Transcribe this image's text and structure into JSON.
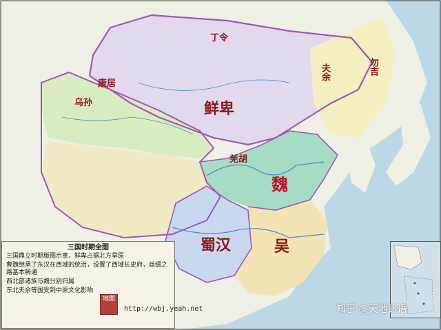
{
  "map": {
    "labels": {
      "dingling": "丁令",
      "xianbei": "鲜卑",
      "fuyu": "夫余",
      "wuji": "勿吉",
      "wusun": "乌孙",
      "kangju": "康居",
      "qiang": "羌胡",
      "wei": "魏",
      "shuhan": "蜀汉",
      "wu": "吴"
    },
    "colors": {
      "ocean": "#bcd8e6",
      "xianbei": "#e2d9ef",
      "northeast": "#f4eec0",
      "westernRegions": "#d9ecc0",
      "tibet": "#efe9c4",
      "wei": "#a6dcc3",
      "shu": "#c8d8ee",
      "wu": "#f3e3b4",
      "border": "#a255b8",
      "label": "#8b1a1a"
    }
  },
  "legend": {
    "title": "三国时期全图",
    "lines": [
      "三国鼎立时期版图示意，鲜卑占据北方草原",
      "曹魏继承了东汉在西域的统治，设置了西域长史府，丝绸之路基本畅通",
      "西北部诸族与魏分别归属",
      "东北夫余等国受到中原文化影响"
    ]
  },
  "seal": {
    "text": "地图"
  },
  "source_url": "http://wbj.yeah.net",
  "watermark": "知乎 @天地铭语"
}
